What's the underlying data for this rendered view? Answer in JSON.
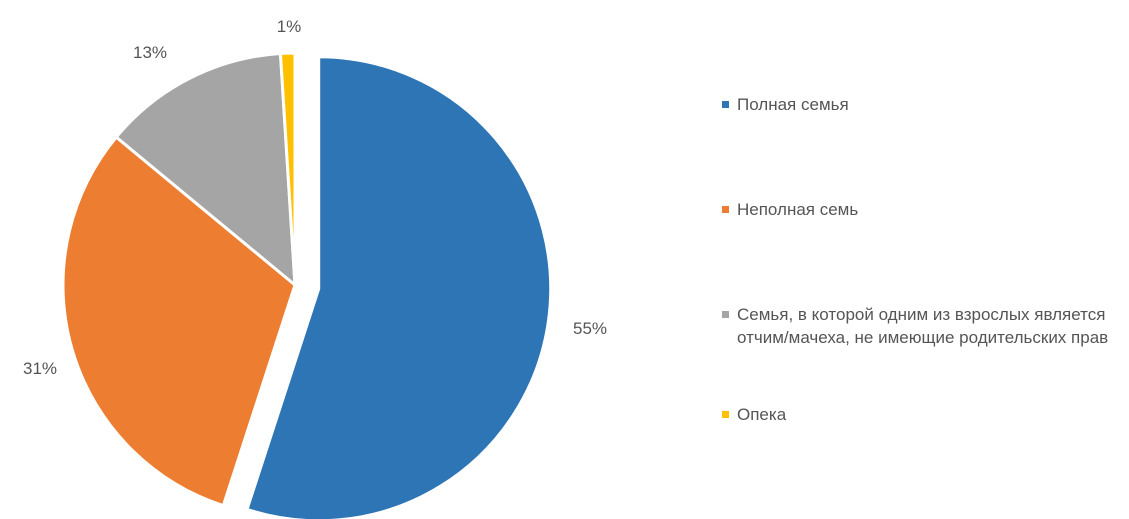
{
  "chart_data": {
    "type": "pie",
    "title": "",
    "slices": [
      {
        "label": "Полная семья",
        "value": 55,
        "value_label": "55%",
        "color": "#2E75B6"
      },
      {
        "label": "Неполная семь",
        "value": 31,
        "value_label": "31%",
        "color": "#ED7D31"
      },
      {
        "label": "Семья, в которой одним из взрослых является отчим/мачеха, не имеющие родительских прав",
        "value": 13,
        "value_label": "13%",
        "color": "#A5A5A5"
      },
      {
        "label": "Опека",
        "value": 1,
        "value_label": "1%",
        "color": "#FFC000"
      }
    ],
    "legend_position": "right",
    "exploded_slice": "Полная семья"
  }
}
